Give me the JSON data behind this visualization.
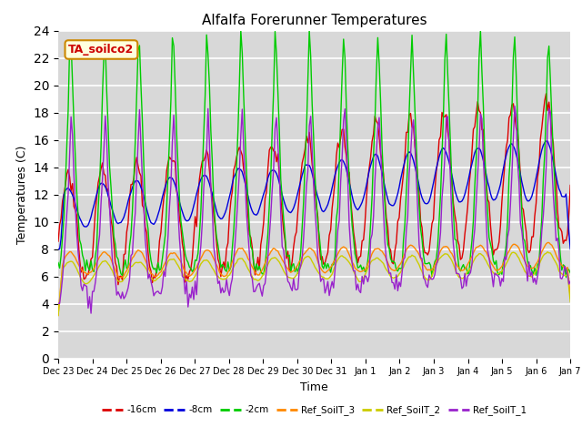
{
  "title": "Alfalfa Forerunner Temperatures",
  "xlabel": "Time",
  "ylabel": "Temperatures (C)",
  "annotation": "TA_soilco2",
  "annotation_color": "#cc0000",
  "annotation_bg": "#ffffdd",
  "annotation_border": "#cc8800",
  "ylim": [
    0,
    24
  ],
  "yticks": [
    0,
    2,
    4,
    6,
    8,
    10,
    12,
    14,
    16,
    18,
    20,
    22,
    24
  ],
  "bg_color": "#d8d8d8",
  "lines": {
    "-16cm": "#dd0000",
    "-8cm": "#0000dd",
    "-2cm": "#00cc00",
    "Ref_SoilT_3": "#ff8800",
    "Ref_SoilT_2": "#cccc00",
    "Ref_SoilT_1": "#9922cc"
  },
  "legend_order": [
    "-16cm",
    "-8cm",
    "-2cm",
    "Ref_SoilT_3",
    "Ref_SoilT_2",
    "Ref_SoilT_1"
  ],
  "tick_labels": [
    "Dec 23",
    "Dec 24",
    "Dec 25",
    "Dec 26",
    "Dec 27",
    "Dec 28",
    "Dec 29",
    "Dec 30",
    "Dec 31",
    "Jan 1",
    "Jan 2",
    "Jan 3",
    "Jan 4",
    "Jan 5",
    "Jan 6",
    "Jan 7"
  ]
}
